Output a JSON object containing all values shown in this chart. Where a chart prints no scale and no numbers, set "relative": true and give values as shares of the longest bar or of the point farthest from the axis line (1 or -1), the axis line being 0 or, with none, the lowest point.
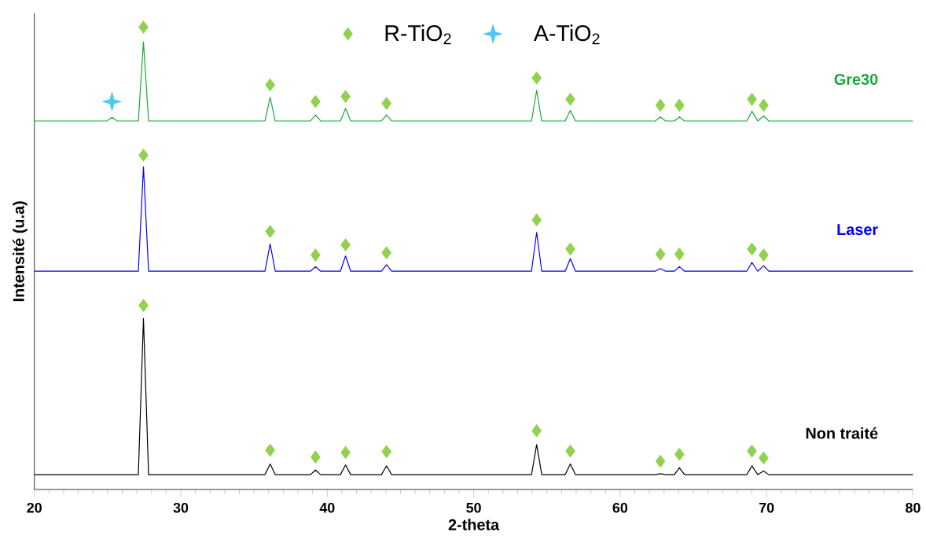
{
  "chart_data": {
    "type": "line",
    "relative": true,
    "xlabel": "2-theta",
    "ylabel": "Intensité  (u.a)",
    "xlim": [
      20,
      80
    ],
    "xticks": [
      20,
      30,
      40,
      50,
      60,
      70,
      80
    ],
    "grid": false,
    "legend": "top",
    "marker": "none",
    "line_style": "solid",
    "series": [
      {
        "name": "Gre30",
        "color": "#1aa83c",
        "x": [
          20,
          24.95,
          25.3,
          25.65,
          27.1,
          27.45,
          27.8,
          35.75,
          36.1,
          36.45,
          38.85,
          39.2,
          39.55,
          40.9,
          41.25,
          41.6,
          43.7,
          44.05,
          44.4,
          53.95,
          54.3,
          54.65,
          56.25,
          56.6,
          56.95,
          62.4,
          62.75,
          63.1,
          63.7,
          64.05,
          64.4,
          68.65,
          69.0,
          69.4,
          69.8,
          70.15,
          80
        ],
        "values": [
          0.797,
          0.797,
          0.805,
          0.797,
          0.797,
          0.968,
          0.797,
          0.797,
          0.848,
          0.797,
          0.797,
          0.81,
          0.797,
          0.797,
          0.824,
          0.797,
          0.797,
          0.81,
          0.797,
          0.797,
          0.863,
          0.797,
          0.797,
          0.82,
          0.797,
          0.797,
          0.806,
          0.797,
          0.797,
          0.806,
          0.797,
          0.797,
          0.818,
          0.797,
          0.808,
          0.797,
          0.797
        ]
      },
      {
        "name": "Laser",
        "color": "#0000ff",
        "x": [
          20,
          27.1,
          27.45,
          27.8,
          35.75,
          36.1,
          36.45,
          38.85,
          39.2,
          39.55,
          40.9,
          41.25,
          41.6,
          43.7,
          44.05,
          44.4,
          53.95,
          54.3,
          54.65,
          56.25,
          56.6,
          56.95,
          62.4,
          62.75,
          63.1,
          63.7,
          64.05,
          64.4,
          68.65,
          69.0,
          69.4,
          69.8,
          70.15,
          80
        ],
        "values": [
          0.472,
          0.472,
          0.698,
          0.472,
          0.472,
          0.531,
          0.472,
          0.472,
          0.482,
          0.472,
          0.472,
          0.505,
          0.472,
          0.472,
          0.486,
          0.472,
          0.472,
          0.556,
          0.472,
          0.472,
          0.499,
          0.472,
          0.472,
          0.478,
          0.472,
          0.472,
          0.482,
          0.472,
          0.472,
          0.491,
          0.472,
          0.484,
          0.472,
          0.472
        ]
      },
      {
        "name": "Non traité",
        "color": "#000000",
        "x": [
          20,
          27.1,
          27.45,
          27.8,
          35.75,
          36.1,
          36.45,
          38.85,
          39.2,
          39.55,
          40.9,
          41.25,
          41.6,
          43.7,
          44.05,
          44.4,
          53.95,
          54.3,
          54.65,
          56.25,
          56.6,
          56.95,
          62.4,
          62.75,
          63.1,
          63.7,
          64.05,
          64.4,
          68.65,
          69.0,
          69.4,
          69.8,
          70.15,
          80
        ],
        "values": [
          0.032,
          0.032,
          0.37,
          0.032,
          0.032,
          0.055,
          0.032,
          0.032,
          0.042,
          0.032,
          0.032,
          0.053,
          0.032,
          0.032,
          0.051,
          0.032,
          0.032,
          0.097,
          0.032,
          0.032,
          0.055,
          0.032,
          0.032,
          0.034,
          0.032,
          0.032,
          0.047,
          0.032,
          0.032,
          0.051,
          0.032,
          0.04,
          0.032,
          0.032
        ]
      },
      {
        "name": "R-TiO$_{2}$",
        "type": "scatter",
        "marker": "diamond",
        "color": "#92d050",
        "x": [
          27.45,
          36.1,
          39.2,
          41.25,
          44.05,
          54.3,
          56.6,
          62.75,
          64.05,
          69.0,
          69.8,
          27.45,
          36.1,
          39.2,
          41.25,
          44.05,
          54.3,
          56.6,
          62.75,
          64.05,
          69.0,
          69.8,
          27.45,
          36.1,
          39.2,
          41.25,
          44.05,
          54.3,
          56.6,
          62.75,
          64.05,
          69.0,
          69.8
        ],
        "values": [
          1.0,
          0.875,
          0.839,
          0.85,
          0.835,
          0.89,
          0.844,
          0.831,
          0.831,
          0.844,
          0.831,
          0.723,
          0.558,
          0.507,
          0.529,
          0.512,
          0.583,
          0.52,
          0.509,
          0.509,
          0.52,
          0.507,
          0.398,
          0.085,
          0.07,
          0.08,
          0.082,
          0.127,
          0.083,
          0.061,
          0.076,
          0.083,
          0.068
        ]
      },
      {
        "name": "A-TiO$_{2}$",
        "type": "scatter",
        "marker": "star",
        "color": "#4fc8f0",
        "x": [
          25.3
        ],
        "values": [
          0.839
        ]
      }
    ]
  }
}
